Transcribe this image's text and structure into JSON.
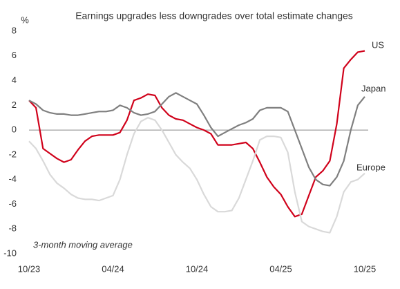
{
  "chart_data": {
    "type": "line",
    "title": "Earnings upgrades less downgrades over total estimate changes",
    "y_label": "%",
    "annotation": "3-month moving average",
    "categories": [
      "10/23",
      null,
      null,
      null,
      null,
      null,
      null,
      null,
      null,
      null,
      null,
      null,
      "04/24",
      null,
      null,
      null,
      null,
      null,
      null,
      null,
      null,
      null,
      null,
      null,
      "10/24",
      null,
      null,
      null,
      null,
      null,
      null,
      null,
      null,
      null,
      null,
      null,
      "04/25",
      null,
      null,
      null,
      null,
      null,
      null,
      null,
      null,
      null,
      null,
      null,
      "10/25"
    ],
    "series": [
      {
        "name": "US",
        "color": "#d0021b",
        "values": [
          2.4,
          1.8,
          -1.5,
          -1.9,
          -2.3,
          -2.6,
          -2.4,
          -1.6,
          -0.9,
          -0.5,
          -0.4,
          -0.4,
          -0.4,
          -0.2,
          0.8,
          2.4,
          2.6,
          2.9,
          2.8,
          1.8,
          1.2,
          0.9,
          0.8,
          0.5,
          0.2,
          0,
          -0.3,
          -1.2,
          -1.2,
          -1.2,
          -1.1,
          -1.0,
          -1.5,
          -2.6,
          -3.8,
          -4.6,
          -5.2,
          -6.2,
          -7.0,
          -6.8,
          -5.3,
          -3.8,
          -3.3,
          -2.5,
          0.5,
          5.0,
          5.7,
          6.3,
          6.4
        ]
      },
      {
        "name": "Japan",
        "color": "#7f7f7f",
        "values": [
          2.4,
          2.1,
          1.6,
          1.4,
          1.3,
          1.3,
          1.2,
          1.2,
          1.3,
          1.4,
          1.5,
          1.5,
          1.6,
          2.0,
          1.8,
          1.4,
          1.2,
          1.3,
          1.5,
          2.1,
          2.7,
          3.0,
          2.7,
          2.4,
          2.1,
          1.2,
          0.2,
          -0.5,
          -0.2,
          0.1,
          0.4,
          0.6,
          0.9,
          1.6,
          1.8,
          1.8,
          1.8,
          1.5,
          0,
          -1.5,
          -3.0,
          -4.0,
          -4.4,
          -4.5,
          -3.8,
          -2.5,
          0,
          2.0,
          2.7
        ]
      },
      {
        "name": "Europe",
        "color": "#d9d9d9",
        "values": [
          -0.9,
          -1.5,
          -2.5,
          -3.6,
          -4.3,
          -4.7,
          -5.2,
          -5.5,
          -5.6,
          -5.6,
          -5.7,
          -5.5,
          -5.3,
          -4.0,
          -2.0,
          -0.3,
          0.7,
          1.0,
          0.8,
          0,
          -1.0,
          -2.0,
          -2.6,
          -3.1,
          -4.0,
          -5.2,
          -6.2,
          -6.6,
          -6.6,
          -6.5,
          -5.5,
          -4.0,
          -2.5,
          -0.8,
          -0.5,
          -0.5,
          -0.6,
          -1.8,
          -5.0,
          -7.4,
          -7.8,
          -8.0,
          -8.2,
          -8.3,
          -7.0,
          -5.0,
          -4.2,
          -4.0,
          -3.5
        ]
      }
    ],
    "ylim": [
      -10,
      8
    ],
    "yticks": [
      8,
      6,
      4,
      2,
      0,
      -2,
      -4,
      -6,
      -8,
      -10
    ]
  }
}
